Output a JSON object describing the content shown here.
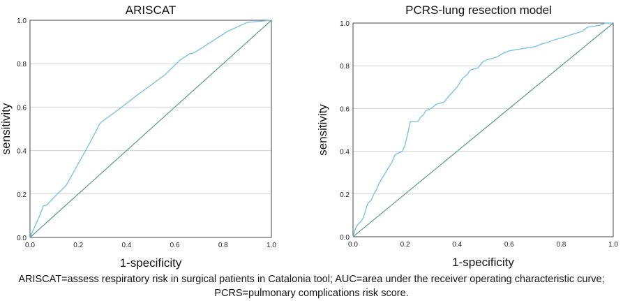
{
  "chart_data": [
    {
      "type": "line",
      "title": "ARISCAT",
      "xlabel": "1-specificity",
      "ylabel": "sensitivity",
      "xlim": [
        0,
        1
      ],
      "ylim": [
        0,
        1
      ],
      "xticks": [
        "0.0",
        "0.2",
        "0.4",
        "0.6",
        "0.8",
        "1.0"
      ],
      "yticks": [
        "0.0",
        "0.2",
        "0.4",
        "0.6",
        "0.8",
        "1.0"
      ],
      "grid": "horizontal",
      "series": [
        {
          "color": "#7ec3df",
          "points": [
            [
              0,
              0
            ],
            [
              0.02,
              0.05
            ],
            [
              0.04,
              0.1
            ],
            [
              0.055,
              0.145
            ],
            [
              0.07,
              0.15
            ],
            [
              0.1,
              0.185
            ],
            [
              0.15,
              0.24
            ],
            [
              0.2,
              0.34
            ],
            [
              0.25,
              0.44
            ],
            [
              0.29,
              0.525
            ],
            [
              0.3,
              0.535
            ],
            [
              0.35,
              0.575
            ],
            [
              0.45,
              0.66
            ],
            [
              0.56,
              0.75
            ],
            [
              0.62,
              0.815
            ],
            [
              0.66,
              0.845
            ],
            [
              0.68,
              0.85
            ],
            [
              0.75,
              0.9
            ],
            [
              0.82,
              0.95
            ],
            [
              0.9,
              0.99
            ],
            [
              1.0,
              1.0
            ]
          ]
        },
        {
          "color": "#5a9a8a",
          "points": [
            [
              0,
              0
            ],
            [
              1,
              1
            ]
          ]
        }
      ]
    },
    {
      "type": "line",
      "title": "PCRS-lung resection model",
      "xlabel": "1-specificity",
      "ylabel": "sensitivity",
      "xlim": [
        0,
        1
      ],
      "ylim": [
        0,
        1
      ],
      "xticks": [
        "0.0",
        "0.2",
        "0.4",
        "0.6",
        "0.8",
        "1.0"
      ],
      "yticks": [
        "0.0",
        "0.2",
        "0.4",
        "0.6",
        "0.8",
        "1.0"
      ],
      "grid": "horizontal",
      "series": [
        {
          "color": "#7ec3df",
          "points": [
            [
              0,
              0
            ],
            [
              0.005,
              0.02
            ],
            [
              0.01,
              0.04
            ],
            [
              0.02,
              0.06
            ],
            [
              0.03,
              0.07
            ],
            [
              0.04,
              0.09
            ],
            [
              0.045,
              0.11
            ],
            [
              0.05,
              0.13
            ],
            [
              0.055,
              0.15
            ],
            [
              0.06,
              0.16
            ],
            [
              0.07,
              0.17
            ],
            [
              0.08,
              0.2
            ],
            [
              0.09,
              0.22
            ],
            [
              0.1,
              0.25
            ],
            [
              0.11,
              0.27
            ],
            [
              0.12,
              0.29
            ],
            [
              0.13,
              0.31
            ],
            [
              0.14,
              0.33
            ],
            [
              0.15,
              0.35
            ],
            [
              0.16,
              0.38
            ],
            [
              0.17,
              0.39
            ],
            [
              0.19,
              0.4
            ],
            [
              0.2,
              0.43
            ],
            [
              0.21,
              0.48
            ],
            [
              0.22,
              0.54
            ],
            [
              0.25,
              0.54
            ],
            [
              0.26,
              0.56
            ],
            [
              0.27,
              0.57
            ],
            [
              0.28,
              0.59
            ],
            [
              0.3,
              0.6
            ],
            [
              0.32,
              0.62
            ],
            [
              0.35,
              0.63
            ],
            [
              0.37,
              0.66
            ],
            [
              0.4,
              0.7
            ],
            [
              0.42,
              0.74
            ],
            [
              0.44,
              0.76
            ],
            [
              0.45,
              0.78
            ],
            [
              0.48,
              0.79
            ],
            [
              0.5,
              0.82
            ],
            [
              0.52,
              0.83
            ],
            [
              0.55,
              0.84
            ],
            [
              0.58,
              0.86
            ],
            [
              0.6,
              0.87
            ],
            [
              0.65,
              0.88
            ],
            [
              0.7,
              0.89
            ],
            [
              0.72,
              0.9
            ],
            [
              0.75,
              0.91
            ],
            [
              0.77,
              0.92
            ],
            [
              0.8,
              0.93
            ],
            [
              0.85,
              0.95
            ],
            [
              0.88,
              0.96
            ],
            [
              0.9,
              0.98
            ],
            [
              0.95,
              0.99
            ],
            [
              0.97,
              1.0
            ],
            [
              1.0,
              1.0
            ]
          ]
        },
        {
          "color": "#5a9a8a",
          "points": [
            [
              0,
              0
            ],
            [
              1,
              1
            ]
          ]
        }
      ]
    }
  ],
  "caption": {
    "line1": "ARISCAT=assess respiratory risk in surgical patients in Catalonia tool; AUC=area under the receiver operating characteristic curve;",
    "line2": "PCRS=pulmonary complications risk score."
  }
}
